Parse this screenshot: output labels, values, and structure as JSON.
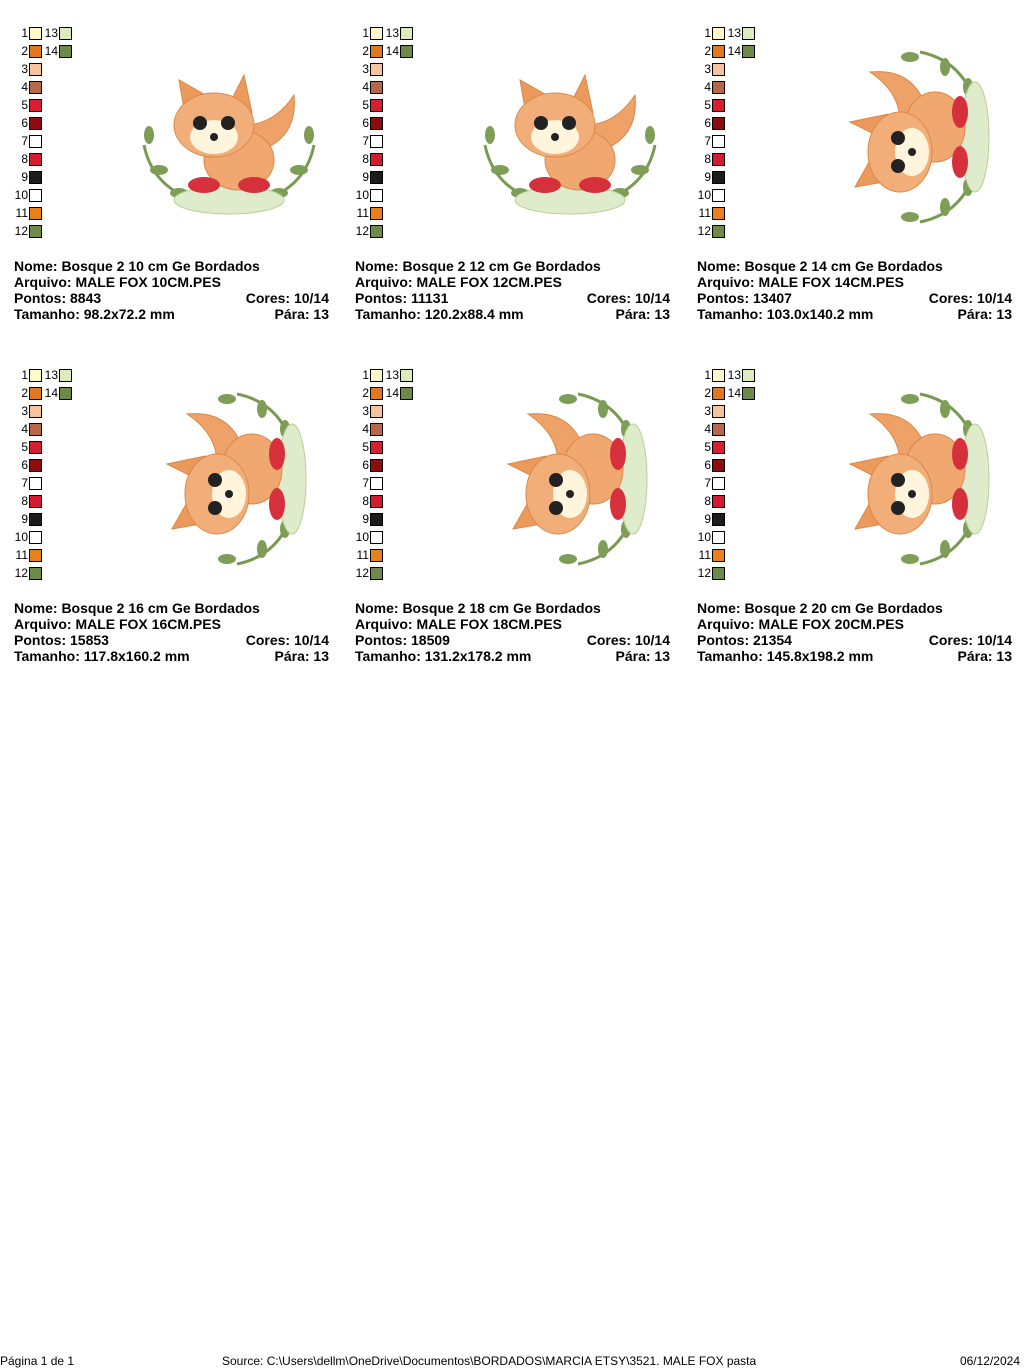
{
  "palette": [
    {
      "number": "1",
      "color": "#fff8c8"
    },
    {
      "number": "2",
      "color": "#e07820"
    },
    {
      "number": "3",
      "color": "#f5c39c"
    },
    {
      "number": "4",
      "color": "#b8684a"
    },
    {
      "number": "5",
      "color": "#d62030"
    },
    {
      "number": "6",
      "color": "#8c0c10"
    },
    {
      "number": "7",
      "color": "#ffffff"
    },
    {
      "number": "8",
      "color": "#d41c30"
    },
    {
      "number": "9",
      "color": "#1c1c1c"
    },
    {
      "number": "10",
      "color": "#ffffff"
    },
    {
      "number": "11",
      "color": "#e8801c"
    },
    {
      "number": "12",
      "color": "#6e8a48"
    },
    {
      "number": "13",
      "color": "#dceabc"
    },
    {
      "number": "14",
      "color": "#6e8a48"
    }
  ],
  "designs": [
    {
      "name": "Nome: Bosque 2 10 cm Ge Bordados",
      "file": "Arquivo: MALE FOX 10CM.PES",
      "stitches": "Pontos: 8843",
      "colors": "Cores: 10/14",
      "size": "Tamanho: 98.2x72.2 mm",
      "stops": "Pára: 13"
    },
    {
      "name": "Nome: Bosque 2 12 cm Ge Bordados",
      "file": "Arquivo: MALE FOX 12CM.PES",
      "stitches": "Pontos: 11131",
      "colors": "Cores: 10/14",
      "size": "Tamanho: 120.2x88.4 mm",
      "stops": "Pára: 13"
    },
    {
      "name": "Nome: Bosque 2 14 cm Ge Bordados",
      "file": "Arquivo: MALE FOX 14CM.PES",
      "stitches": "Pontos: 13407",
      "colors": "Cores: 10/14",
      "size": "Tamanho: 103.0x140.2 mm",
      "stops": "Pára: 13"
    },
    {
      "name": "Nome: Bosque 2 16 cm Ge Bordados",
      "file": "Arquivo: MALE FOX 16CM.PES",
      "stitches": "Pontos: 15853",
      "colors": "Cores: 10/14",
      "size": "Tamanho: 117.8x160.2 mm",
      "stops": "Pára: 13"
    },
    {
      "name": "Nome: Bosque 2 18 cm Ge Bordados",
      "file": "Arquivo: MALE FOX 18CM.PES",
      "stitches": "Pontos: 18509",
      "colors": "Cores: 10/14",
      "size": "Tamanho: 131.2x178.2 mm",
      "stops": "Pára: 13"
    },
    {
      "name": "Nome: Bosque 2 20 cm Ge Bordados",
      "file": "Arquivo: MALE FOX 20CM.PES",
      "stitches": "Pontos: 21354",
      "colors": "Cores: 10/14",
      "size": "Tamanho: 145.8x198.2 mm",
      "stops": "Pára: 13"
    }
  ],
  "footer": {
    "page": "Página 1 de 1",
    "source": "Source: C:\\Users\\dellm\\OneDrive\\Documentos\\BORDADOS\\MARCIA ETSY\\3521. MALE FOX pasta",
    "date": "06/12/2024"
  }
}
